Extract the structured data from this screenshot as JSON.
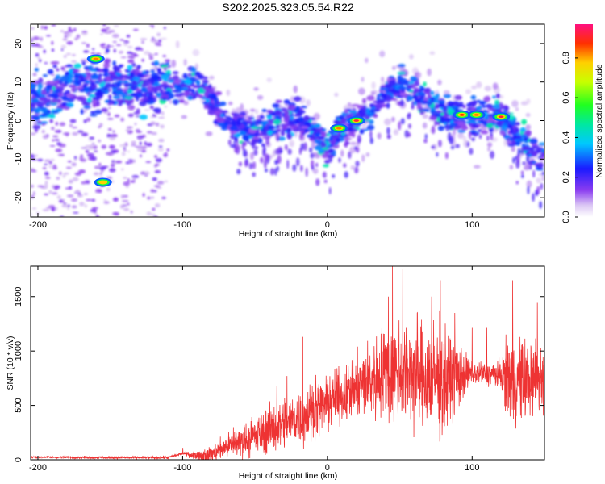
{
  "title": "S202.2025.323.05.54.R22",
  "chart_data": [
    {
      "type": "heatmap",
      "name": "spectrogram",
      "xlabel": "Height of straight line (km)",
      "ylabel": "Frequency (Hz)",
      "xlim": [
        -205,
        150
      ],
      "ylim": [
        -25,
        25
      ],
      "xticks": [
        -200,
        -100,
        0,
        100
      ],
      "yticks": [
        -20,
        -10,
        0,
        10,
        20
      ],
      "colorbar": {
        "label": "Normalized spectral amplitude",
        "range": [
          0.0,
          0.97
        ],
        "ticks": [
          0.0,
          0.2,
          0.4,
          0.6,
          0.8
        ]
      },
      "ridge": [
        {
          "x": -200,
          "y": 5
        },
        {
          "x": -180,
          "y": 8
        },
        {
          "x": -160,
          "y": 9
        },
        {
          "x": -140,
          "y": 9
        },
        {
          "x": -120,
          "y": 8
        },
        {
          "x": -100,
          "y": 9
        },
        {
          "x": -90,
          "y": 10
        },
        {
          "x": -80,
          "y": 5
        },
        {
          "x": -70,
          "y": 0
        },
        {
          "x": -60,
          "y": -2
        },
        {
          "x": -50,
          "y": -3
        },
        {
          "x": -40,
          "y": -1
        },
        {
          "x": -30,
          "y": 0
        },
        {
          "x": -20,
          "y": 1
        },
        {
          "x": -10,
          "y": -3
        },
        {
          "x": 0,
          "y": -7
        },
        {
          "x": 10,
          "y": -2
        },
        {
          "x": 20,
          "y": 0
        },
        {
          "x": 30,
          "y": 3
        },
        {
          "x": 40,
          "y": 7
        },
        {
          "x": 50,
          "y": 9
        },
        {
          "x": 60,
          "y": 8
        },
        {
          "x": 70,
          "y": 5
        },
        {
          "x": 80,
          "y": 2
        },
        {
          "x": 90,
          "y": 1
        },
        {
          "x": 100,
          "y": 1
        },
        {
          "x": 110,
          "y": 1
        },
        {
          "x": 120,
          "y": 1
        },
        {
          "x": 130,
          "y": -3
        },
        {
          "x": 140,
          "y": -7
        },
        {
          "x": 150,
          "y": -10
        }
      ],
      "peaks": [
        {
          "x": -160,
          "y": 16,
          "amp": 0.85
        },
        {
          "x": -155,
          "y": -16,
          "amp": 0.8
        },
        {
          "x": 8,
          "y": -2,
          "amp": 0.85
        },
        {
          "x": 20,
          "y": 0,
          "amp": 0.95
        },
        {
          "x": 93,
          "y": 1.5,
          "amp": 0.9
        },
        {
          "x": 103,
          "y": 1.5,
          "amp": 0.85
        },
        {
          "x": 120,
          "y": 1,
          "amp": 0.95
        }
      ]
    },
    {
      "type": "line",
      "name": "snr",
      "xlabel": "Height of straight line (km)",
      "ylabel": "SNR (10 * v/v)",
      "xlim": [
        -205,
        150
      ],
      "ylim": [
        0,
        1780
      ],
      "xticks": [
        -200,
        -100,
        0,
        100
      ],
      "yticks": [
        0,
        500,
        1000,
        1500
      ],
      "color": "#ee3333",
      "envelope": [
        {
          "x": -205,
          "y": 25
        },
        {
          "x": -150,
          "y": 20
        },
        {
          "x": -110,
          "y": 20
        },
        {
          "x": -100,
          "y": 60
        },
        {
          "x": -90,
          "y": 40
        },
        {
          "x": -80,
          "y": 50
        },
        {
          "x": -70,
          "y": 120
        },
        {
          "x": -60,
          "y": 170
        },
        {
          "x": -50,
          "y": 220
        },
        {
          "x": -40,
          "y": 280
        },
        {
          "x": -30,
          "y": 340
        },
        {
          "x": -20,
          "y": 380
        },
        {
          "x": -10,
          "y": 450
        },
        {
          "x": 0,
          "y": 520
        },
        {
          "x": 10,
          "y": 590
        },
        {
          "x": 20,
          "y": 660
        },
        {
          "x": 30,
          "y": 730
        },
        {
          "x": 40,
          "y": 800
        },
        {
          "x": 50,
          "y": 820
        },
        {
          "x": 60,
          "y": 790
        },
        {
          "x": 70,
          "y": 760
        },
        {
          "x": 80,
          "y": 720
        },
        {
          "x": 90,
          "y": 780
        },
        {
          "x": 100,
          "y": 790
        },
        {
          "x": 110,
          "y": 800
        },
        {
          "x": 120,
          "y": 780
        },
        {
          "x": 130,
          "y": 720
        },
        {
          "x": 140,
          "y": 740
        },
        {
          "x": 150,
          "y": 780
        }
      ],
      "noise": [
        {
          "x": -205,
          "y": 8
        },
        {
          "x": -100,
          "y": 12
        },
        {
          "x": -80,
          "y": 60
        },
        {
          "x": -60,
          "y": 120
        },
        {
          "x": -40,
          "y": 180
        },
        {
          "x": -20,
          "y": 220
        },
        {
          "x": 0,
          "y": 200
        },
        {
          "x": 20,
          "y": 230
        },
        {
          "x": 40,
          "y": 380
        },
        {
          "x": 60,
          "y": 420
        },
        {
          "x": 80,
          "y": 430
        },
        {
          "x": 90,
          "y": 260
        },
        {
          "x": 100,
          "y": 90
        },
        {
          "x": 120,
          "y": 110
        },
        {
          "x": 125,
          "y": 330
        },
        {
          "x": 150,
          "y": 300
        }
      ],
      "spikes": [
        {
          "x": -100,
          "y": 110
        },
        {
          "x": -65,
          "y": 300
        },
        {
          "x": -35,
          "y": 680
        },
        {
          "x": -28,
          "y": 770
        },
        {
          "x": -17,
          "y": 1130
        },
        {
          "x": -8,
          "y": 780
        },
        {
          "x": 20,
          "y": 780
        },
        {
          "x": 42,
          "y": 1500
        },
        {
          "x": 45,
          "y": 1780
        },
        {
          "x": 52,
          "y": 1750
        },
        {
          "x": 62,
          "y": 1350
        },
        {
          "x": 72,
          "y": 1500
        },
        {
          "x": 78,
          "y": 1650
        },
        {
          "x": 88,
          "y": 1350
        },
        {
          "x": 100,
          "y": 1220
        },
        {
          "x": 110,
          "y": 1220
        },
        {
          "x": 128,
          "y": 1650
        },
        {
          "x": 145,
          "y": 1450
        }
      ]
    }
  ]
}
